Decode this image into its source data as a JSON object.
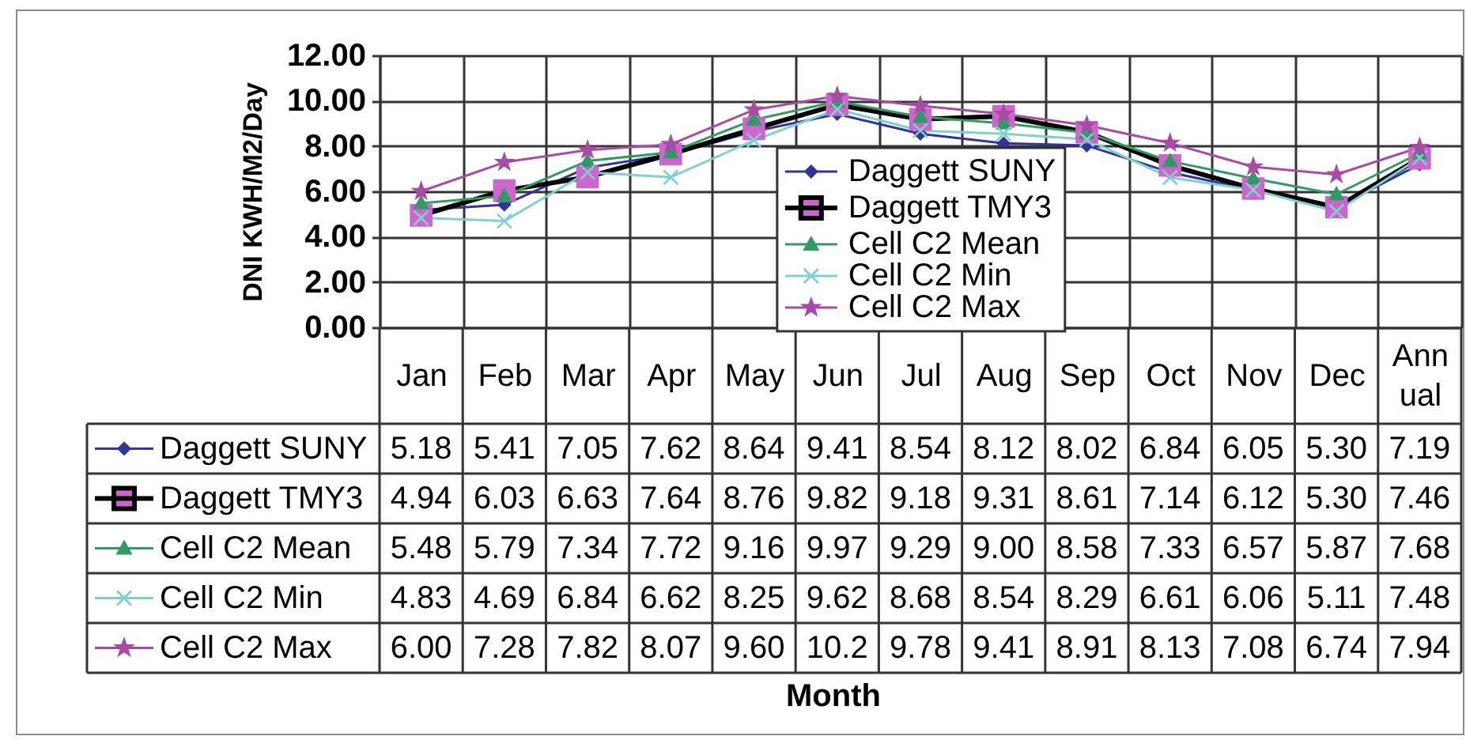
{
  "chart_data": {
    "type": "line",
    "ylabel": "DNI KWH/M2/Day",
    "annotations": [
      "Month"
    ],
    "categories": [
      "Jan",
      "Feb",
      "Mar",
      "Apr",
      "May",
      "Jun",
      "Jul",
      "Aug",
      "Sep",
      "Oct",
      "Nov",
      "Dec",
      "Annual"
    ],
    "ylim": [
      0,
      12
    ],
    "yticks": [
      {
        "value": 0,
        "label": "0.00"
      },
      {
        "value": 2,
        "label": "2.00"
      },
      {
        "value": 4,
        "label": "4.00"
      },
      {
        "value": 6,
        "label": "6.00"
      },
      {
        "value": 8,
        "label": "8.00"
      },
      {
        "value": 10,
        "label": "10.00"
      },
      {
        "value": 12,
        "label": "12.00"
      }
    ],
    "grid": true,
    "legend": "bottom",
    "series": [
      {
        "name": "Daggett SUNY",
        "color": "#333399",
        "marker": "diamond",
        "values": [
          5.18,
          5.41,
          7.05,
          7.62,
          8.64,
          9.41,
          8.54,
          8.12,
          8.02,
          6.84,
          6.05,
          5.3,
          7.19
        ],
        "value_labels": [
          "5.18",
          "5.41",
          "7.05",
          "7.62",
          "8.64",
          "9.41",
          "8.54",
          "8.12",
          "8.02",
          "6.84",
          "6.05",
          "5.30",
          "7.19"
        ]
      },
      {
        "name": "Daggett TMY3",
        "color": "#000000",
        "colors": [
          "#cc66cc",
          "#cc66cc",
          "#cc66cc",
          "#cc66cc",
          "#cc66cc",
          "#cc66cc",
          "#cc66cc",
          "#cc66cc",
          "#cc66cc",
          "#cc66cc",
          "#cc66cc",
          "#cc66cc",
          "#cc66cc"
        ],
        "marker": "square",
        "values": [
          4.94,
          6.03,
          6.63,
          7.64,
          8.76,
          9.82,
          9.18,
          9.31,
          8.61,
          7.14,
          6.12,
          5.3,
          7.46
        ],
        "value_labels": [
          "4.94",
          "6.03",
          "6.63",
          "7.64",
          "8.76",
          "9.82",
          "9.18",
          "9.31",
          "8.61",
          "7.14",
          "6.12",
          "5.30",
          "7.46"
        ]
      },
      {
        "name": "Cell C2 Mean",
        "color": "#339966",
        "marker": "triangle",
        "values": [
          5.48,
          5.79,
          7.34,
          7.72,
          9.16,
          9.97,
          9.29,
          9.0,
          8.58,
          7.33,
          6.57,
          5.87,
          7.68
        ],
        "value_labels": [
          "5.48",
          "5.79",
          "7.34",
          "7.72",
          "9.16",
          "9.97",
          "9.29",
          "9.00",
          "8.58",
          "7.33",
          "6.57",
          "5.87",
          "7.68"
        ]
      },
      {
        "name": "Cell C2 Min",
        "color": "#80d0d0",
        "marker": "cross",
        "values": [
          4.83,
          4.69,
          6.84,
          6.62,
          8.25,
          9.62,
          8.68,
          8.54,
          8.29,
          6.61,
          6.06,
          5.11,
          7.48
        ],
        "value_labels": [
          "4.83",
          "4.69",
          "6.84",
          "6.62",
          "8.25",
          "9.62",
          "8.68",
          "8.54",
          "8.29",
          "6.61",
          "6.06",
          "5.11",
          "7.48"
        ]
      },
      {
        "name": "Cell C2 Max",
        "color": "#a64ca6",
        "marker": "star",
        "values": [
          6.0,
          7.28,
          7.82,
          8.07,
          9.6,
          10.2,
          9.78,
          9.41,
          8.91,
          8.13,
          7.08,
          6.74,
          7.94
        ],
        "value_labels": [
          "6.00",
          "7.28",
          "7.82",
          "8.07",
          "9.60",
          "10.2",
          "9.78",
          "9.41",
          "8.91",
          "8.13",
          "7.08",
          "6.74",
          "7.94"
        ]
      }
    ]
  }
}
